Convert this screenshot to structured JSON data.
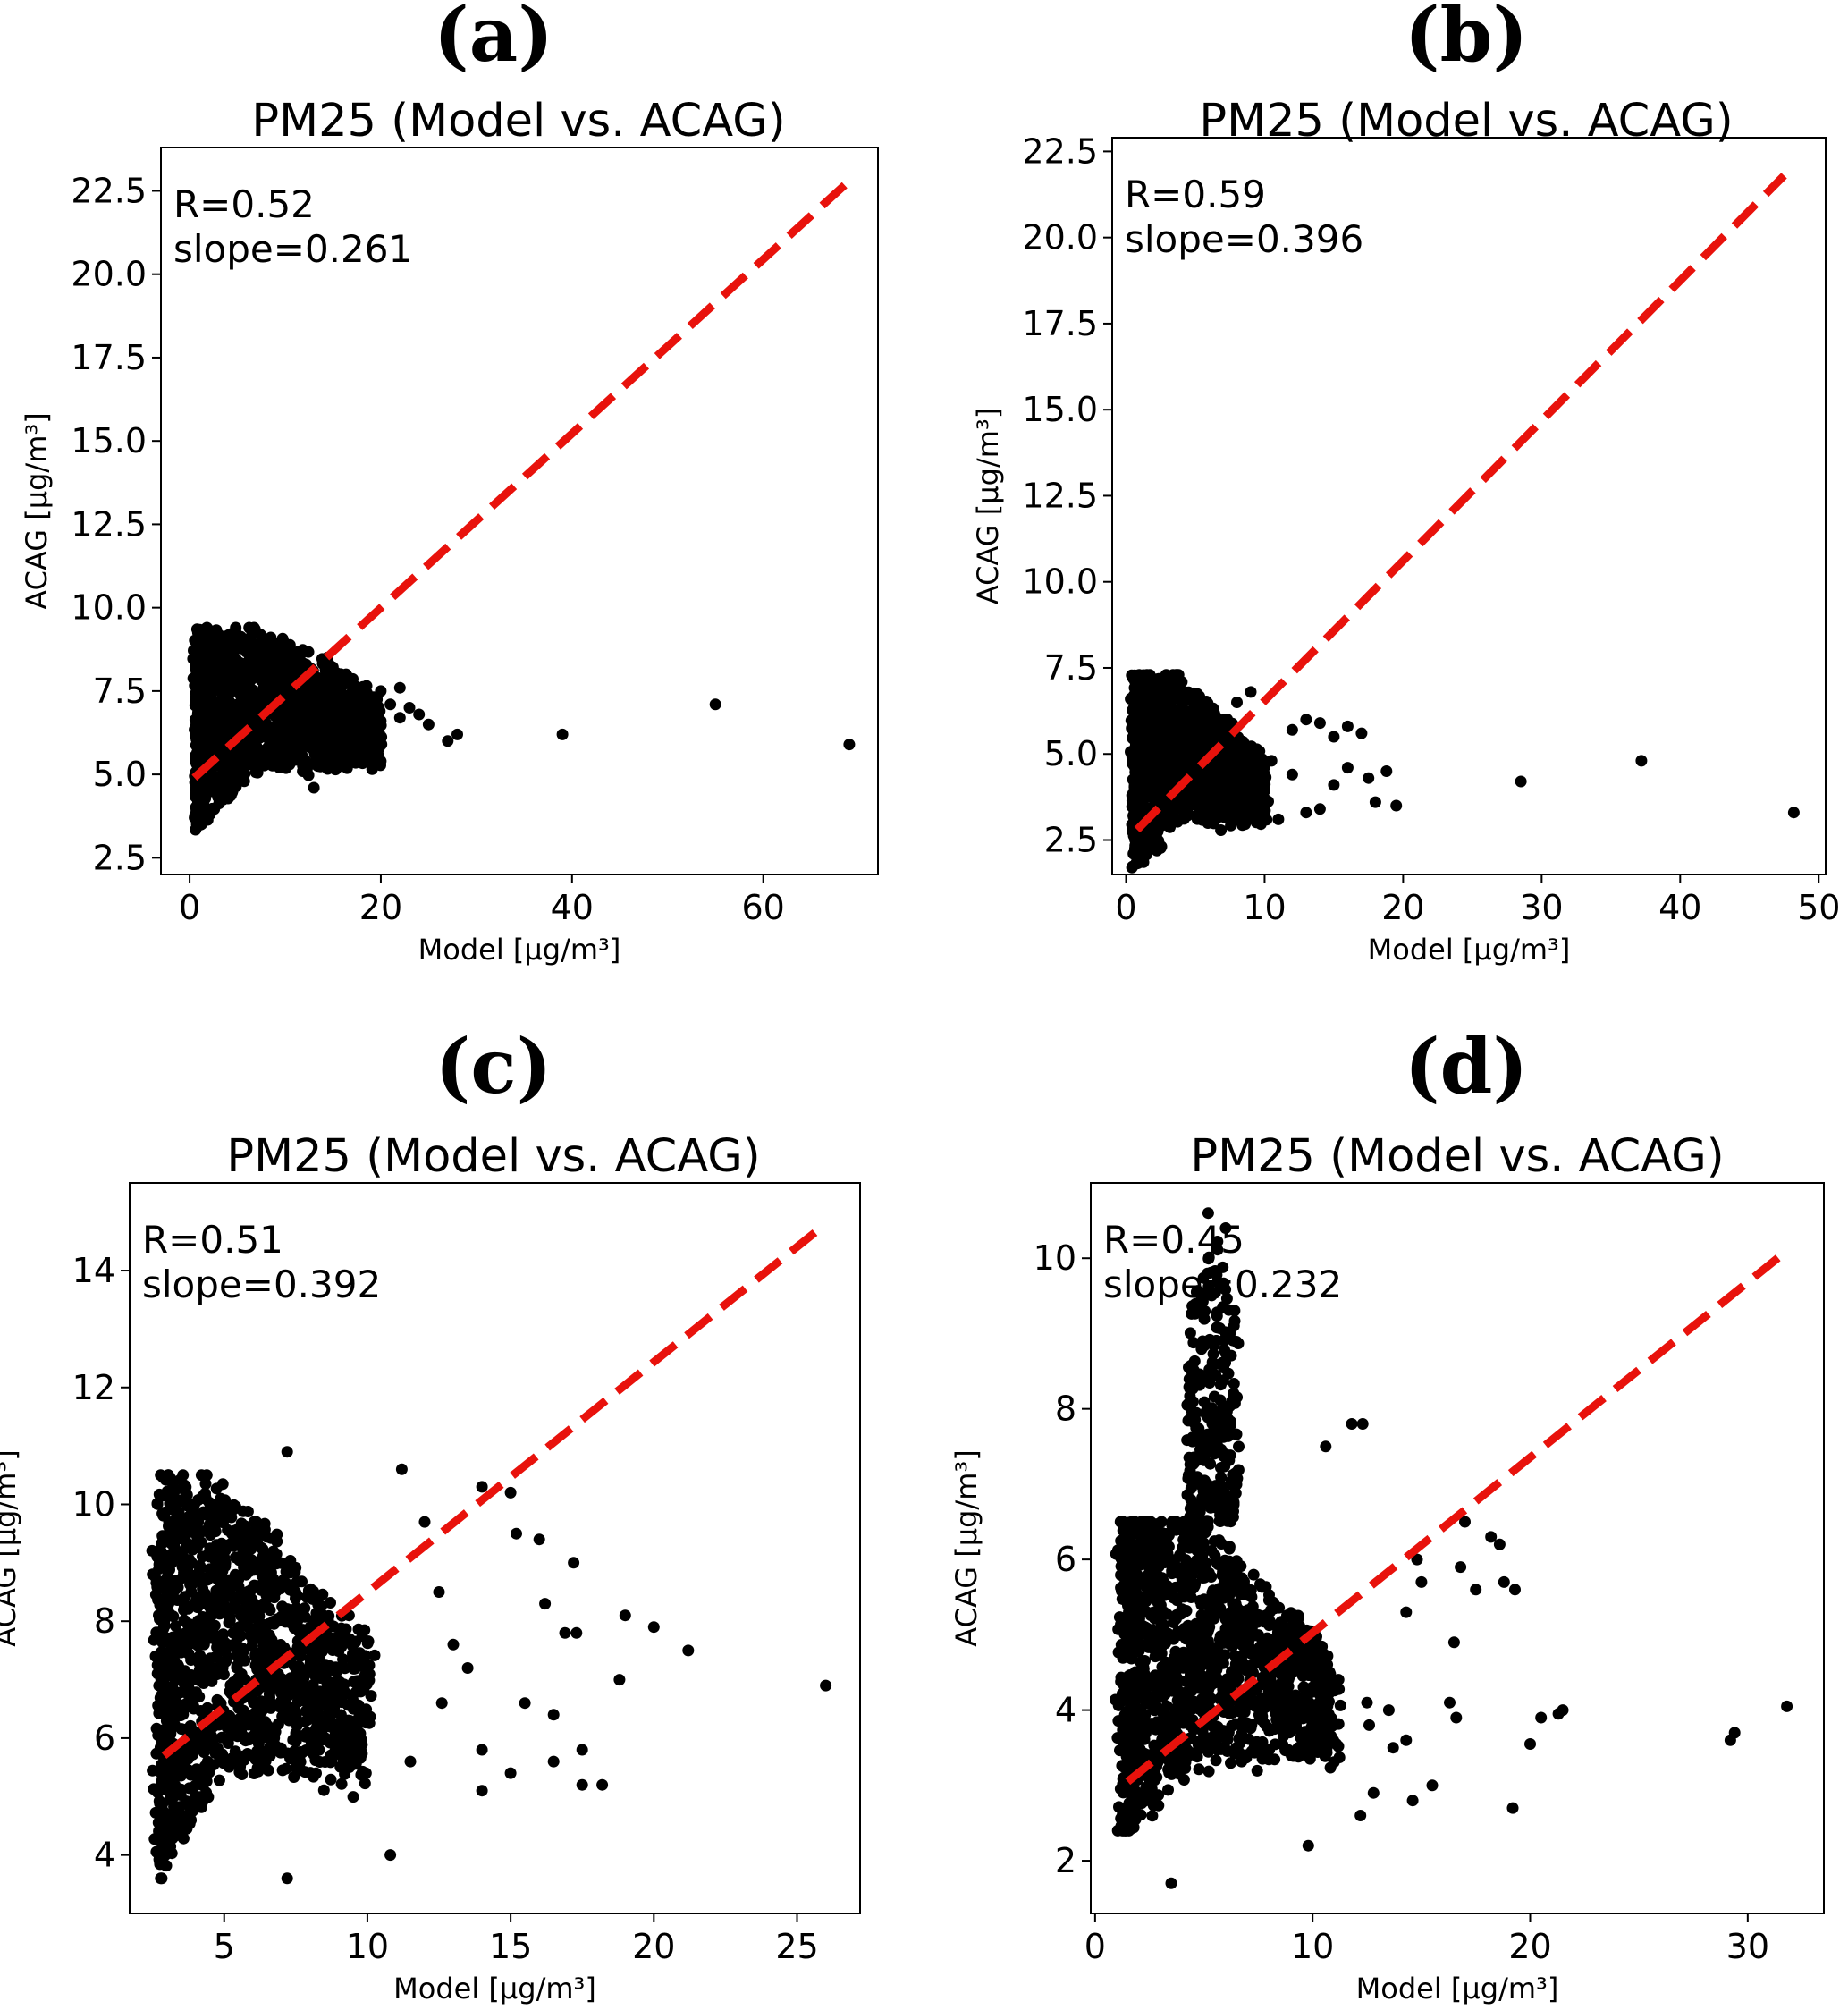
{
  "chart_data": [
    {
      "type": "scatter",
      "panel_label": "(a)",
      "title": "PM25 (Model vs. ACAG)",
      "xlabel": "Model [μg/m³]",
      "ylabel": "ACAG [μg/m³]",
      "xlim": [
        -3,
        72
      ],
      "ylim": [
        2.0,
        23.8
      ],
      "xticks": [
        0,
        20,
        40,
        60
      ],
      "yticks": [
        2.5,
        5.0,
        7.5,
        10.0,
        12.5,
        15.0,
        17.5,
        20.0,
        22.5
      ],
      "ytick_labels": [
        "2.5",
        "5.0",
        "7.5",
        "10.0",
        "12.5",
        "15.0",
        "17.5",
        "20.0",
        "22.5"
      ],
      "stats": {
        "R": "R=0.52",
        "slope": "slope=0.261"
      },
      "fit_line": {
        "x": [
          0.5,
          69
        ],
        "y": [
          4.9,
          22.8
        ]
      },
      "cluster": {
        "x": [
          0.7,
          20
        ],
        "peak": 7,
        "y_min_at_x0": 3.3,
        "y_max": 9.4,
        "center_y": 6.9
      },
      "outliers": [
        [
          39,
          6.2
        ],
        [
          55,
          7.1
        ],
        [
          69,
          5.9
        ],
        [
          28,
          6.2
        ],
        [
          27,
          6.0
        ],
        [
          25,
          6.5
        ],
        [
          24,
          6.8
        ],
        [
          23,
          7.0
        ],
        [
          22,
          7.6
        ],
        [
          22,
          6.7
        ],
        [
          21,
          7.1
        ],
        [
          20,
          7.5
        ],
        [
          20,
          6.6
        ],
        [
          19,
          6.9
        ],
        [
          18,
          6.3
        ],
        [
          17,
          6.6
        ],
        [
          16,
          6.9
        ],
        [
          15,
          6.1
        ],
        [
          14,
          5.6
        ],
        [
          13,
          4.6
        ],
        [
          20,
          5.4
        ]
      ]
    },
    {
      "type": "scatter",
      "panel_label": "(b)",
      "title": "PM25 (Model vs. ACAG)",
      "xlabel": "Model [μg/m³]",
      "ylabel": "ACAG [μg/m³]",
      "xlim": [
        -1,
        50.5
      ],
      "ylim": [
        1.5,
        22.9
      ],
      "xticks": [
        0,
        10,
        20,
        30,
        40,
        50
      ],
      "yticks": [
        2.5,
        5.0,
        7.5,
        10.0,
        12.5,
        15.0,
        17.5,
        20.0,
        22.5
      ],
      "ytick_labels": [
        "2.5",
        "5.0",
        "7.5",
        "10.0",
        "12.5",
        "15.0",
        "17.5",
        "20.0",
        "22.5"
      ],
      "stats": {
        "R": "R=0.59",
        "slope": "slope=0.396"
      },
      "fit_line": {
        "x": [
          0.8,
          47.5
        ],
        "y": [
          2.8,
          21.8
        ]
      },
      "cluster": {
        "x": [
          0.6,
          10
        ],
        "peak": 3.8,
        "y_min_at_x0": 1.7,
        "y_max": 7.3,
        "center_y": 4.2
      },
      "outliers": [
        [
          28.5,
          4.2
        ],
        [
          37.2,
          4.8
        ],
        [
          48.2,
          3.3
        ],
        [
          17,
          5.6
        ],
        [
          16,
          5.8
        ],
        [
          15,
          5.5
        ],
        [
          14,
          5.9
        ],
        [
          13,
          6.0
        ],
        [
          12,
          5.7
        ],
        [
          18.8,
          4.5
        ],
        [
          19.5,
          3.5
        ],
        [
          17.5,
          4.3
        ],
        [
          16,
          4.6
        ],
        [
          15,
          4.1
        ],
        [
          14,
          3.4
        ],
        [
          12,
          4.4
        ],
        [
          11,
          3.1
        ],
        [
          10.5,
          4.8
        ],
        [
          18,
          3.6
        ],
        [
          13,
          3.3
        ],
        [
          9,
          6.8
        ],
        [
          8,
          6.5
        ]
      ]
    },
    {
      "type": "scatter",
      "panel_label": "(c)",
      "title": "PM25 (Model vs. ACAG)",
      "xlabel": "Model [μg/m³]",
      "ylabel": "ACAG [μg/m³]",
      "xlim": [
        1.7,
        27.2
      ],
      "ylim": [
        3.0,
        15.5
      ],
      "xticks": [
        5,
        10,
        15,
        20,
        25
      ],
      "yticks": [
        4,
        6,
        8,
        10,
        12,
        14
      ],
      "ytick_labels": [
        "4",
        "6",
        "8",
        "10",
        "12",
        "14"
      ],
      "stats": {
        "R": "R=0.51",
        "slope": "slope=0.392"
      },
      "fit_line": {
        "x": [
          2.9,
          26.0
        ],
        "y": [
          5.7,
          14.8
        ]
      },
      "cluster": {
        "x": [
          2.8,
          10
        ],
        "peak": 4.7,
        "y_min_at_x0": 3.6,
        "y_max": 10.5,
        "center_y": 6.9
      },
      "outliers": [
        [
          26,
          6.9
        ],
        [
          21.2,
          7.5
        ],
        [
          20,
          7.9
        ],
        [
          19,
          8.1
        ],
        [
          18.8,
          7.0
        ],
        [
          18.2,
          5.2
        ],
        [
          17.5,
          5.2
        ],
        [
          17.5,
          5.8
        ],
        [
          17.3,
          7.8
        ],
        [
          16.5,
          5.6
        ],
        [
          16.5,
          6.4
        ],
        [
          17.2,
          9.0
        ],
        [
          15.5,
          6.6
        ],
        [
          15,
          5.4
        ],
        [
          14,
          5.1
        ],
        [
          14,
          5.8
        ],
        [
          14,
          10.3
        ],
        [
          15,
          10.2
        ],
        [
          15.2,
          9.5
        ],
        [
          16,
          9.4
        ],
        [
          13.5,
          7.2
        ],
        [
          12.5,
          8.5
        ],
        [
          12,
          9.7
        ],
        [
          11.2,
          10.6
        ],
        [
          10.8,
          4.0
        ],
        [
          7.2,
          3.6
        ],
        [
          7.2,
          10.9
        ],
        [
          11.5,
          5.6
        ],
        [
          12.6,
          6.6
        ],
        [
          13,
          7.6
        ],
        [
          16.2,
          8.3
        ],
        [
          16.9,
          7.8
        ]
      ]
    },
    {
      "type": "scatter",
      "panel_label": "(d)",
      "title": "PM25 (Model vs. ACAG)",
      "xlabel": "Model [μg/m³]",
      "ylabel": "ACAG [μg/m³]",
      "xlim": [
        -0.2,
        33.5
      ],
      "ylim": [
        1.3,
        11.0
      ],
      "xticks": [
        0,
        10,
        20,
        30
      ],
      "yticks": [
        2,
        4,
        6,
        8,
        10
      ],
      "ytick_labels": [
        "2",
        "4",
        "6",
        "8",
        "10"
      ],
      "stats": {
        "R": "R=0.45",
        "slope": "slope=0.232"
      },
      "fit_line": {
        "x": [
          1.5,
          31.8
        ],
        "y": [
          3.05,
          10.1
        ]
      },
      "cluster": {
        "x": [
          1.3,
          11
        ],
        "peak": 4.8,
        "y_min_at_x0": 2.4,
        "y_max": 6.5,
        "center_y": 4.2
      },
      "outliers": [
        [
          31.8,
          4.05
        ],
        [
          29.4,
          3.7
        ],
        [
          29.2,
          3.6
        ],
        [
          21.5,
          4.0
        ],
        [
          21.3,
          3.95
        ],
        [
          20.5,
          3.9
        ],
        [
          20,
          3.55
        ],
        [
          19.2,
          2.7
        ],
        [
          19.3,
          5.6
        ],
        [
          18.8,
          5.7
        ],
        [
          18.6,
          6.2
        ],
        [
          18.2,
          6.3
        ],
        [
          17.5,
          5.6
        ],
        [
          17,
          6.5
        ],
        [
          16.8,
          5.9
        ],
        [
          16.5,
          4.9
        ],
        [
          16.6,
          3.9
        ],
        [
          16.3,
          4.1
        ],
        [
          15.5,
          3.0
        ],
        [
          15,
          5.7
        ],
        [
          14.8,
          6.0
        ],
        [
          14.3,
          5.3
        ],
        [
          14.6,
          2.8
        ],
        [
          14.3,
          3.6
        ],
        [
          13.5,
          4.0
        ],
        [
          12.8,
          2.9
        ],
        [
          12.6,
          3.8
        ],
        [
          12.3,
          7.8
        ],
        [
          11.8,
          7.8
        ],
        [
          10.6,
          7.5
        ],
        [
          9.8,
          2.2
        ],
        [
          12.2,
          2.6
        ],
        [
          12.5,
          4.1
        ],
        [
          13.7,
          3.5
        ],
        [
          3.5,
          1.7
        ],
        [
          5.2,
          10.6
        ],
        [
          6.0,
          10.4
        ]
      ],
      "spike": {
        "x": [
          4.2,
          6.6
        ],
        "y_max": 10.5
      }
    }
  ]
}
